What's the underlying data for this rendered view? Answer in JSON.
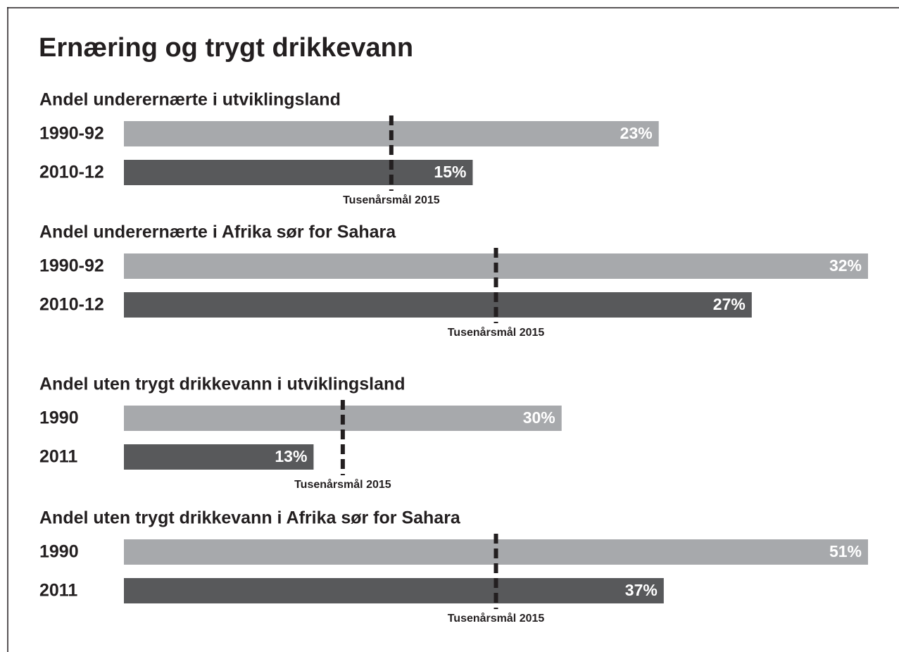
{
  "title": "Ernæring og trygt drikkevann",
  "chart_data": [
    {
      "type": "bar",
      "title": "Andel underernærte i utviklingsland",
      "categories": [
        "1990-92",
        "2010-12"
      ],
      "series": [
        {
          "name": null,
          "colors": [
            "#a7a9ac",
            "#58595b"
          ],
          "values": [
            23,
            15
          ],
          "value_labels": [
            "23%",
            "15%"
          ]
        }
      ],
      "xlim": [
        0,
        32
      ],
      "target": {
        "label": "Tusenårsmål 2015",
        "value": 11.5
      }
    },
    {
      "type": "bar",
      "title": "Andel underernærte i Afrika sør for Sahara",
      "categories": [
        "1990-92",
        "2010-12"
      ],
      "series": [
        {
          "name": null,
          "colors": [
            "#a7a9ac",
            "#58595b"
          ],
          "values": [
            32,
            27
          ],
          "value_labels": [
            "32%",
            "27%"
          ]
        }
      ],
      "xlim": [
        0,
        32
      ],
      "target": {
        "label": "Tusenårsmål 2015",
        "value": 16
      }
    },
    {
      "type": "bar",
      "title": "Andel uten trygt drikkevann i utviklingsland",
      "categories": [
        "1990",
        "2011"
      ],
      "series": [
        {
          "name": null,
          "colors": [
            "#a7a9ac",
            "#58595b"
          ],
          "values": [
            30,
            13
          ],
          "value_labels": [
            "30%",
            "13%"
          ]
        }
      ],
      "xlim": [
        0,
        51
      ],
      "target": {
        "label": "Tusenårsmål 2015",
        "value": 15
      }
    },
    {
      "type": "bar",
      "title": "Andel uten trygt drikkevann i Afrika sør for Sahara",
      "categories": [
        "1990",
        "2011"
      ],
      "series": [
        {
          "name": null,
          "colors": [
            "#a7a9ac",
            "#58595b"
          ],
          "values": [
            51,
            37
          ],
          "value_labels": [
            "51%",
            "37%"
          ]
        }
      ],
      "xlim": [
        0,
        51
      ],
      "target": {
        "label": "Tusenårsmål 2015",
        "value": 25.5
      }
    }
  ]
}
